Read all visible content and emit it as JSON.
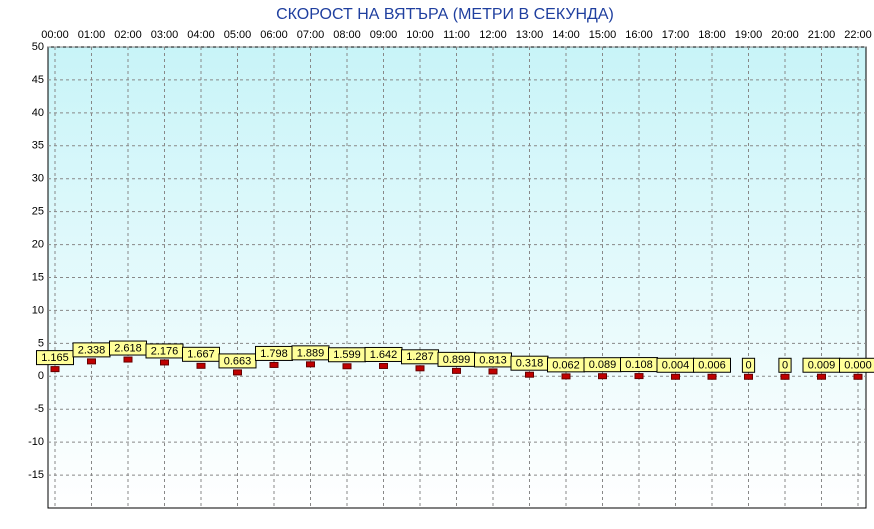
{
  "chart_data": {
    "type": "point",
    "title": "СКОРОСТ НА ВЯТЪРА (МЕТРИ В СЕКУНДА)",
    "categories": [
      "00:00",
      "01:00",
      "02:00",
      "03:00",
      "04:00",
      "05:00",
      "06:00",
      "07:00",
      "08:00",
      "09:00",
      "10:00",
      "11:00",
      "12:00",
      "13:00",
      "14:00",
      "15:00",
      "16:00",
      "17:00",
      "18:00",
      "19:00",
      "20:00",
      "21:00",
      "22:00"
    ],
    "values": [
      1.165,
      2.338,
      2.618,
      2.176,
      1.667,
      0.663,
      1.798,
      1.889,
      1.599,
      1.642,
      1.287,
      0.899,
      0.813,
      0.318,
      0.062,
      0.089,
      0.108,
      0.004,
      0.006,
      0,
      0,
      0.009,
      0
    ],
    "value_labels": [
      "1.165",
      "2.338",
      "2.618",
      "2.176",
      "1.667",
      "0.663",
      "1.798",
      "1.889",
      "1.599",
      "1.642",
      "1.287",
      "0.899",
      "0.813",
      "0.318",
      "0.062",
      "0.089",
      "0.108",
      "0.004",
      "0.006",
      "0",
      "0",
      "0.009",
      "0.000"
    ],
    "color": "#c00000",
    "ylim": [
      -20,
      50
    ],
    "yticks": [
      50,
      45,
      40,
      35,
      30,
      25,
      20,
      15,
      10,
      5,
      0,
      -5,
      -10,
      -15
    ],
    "grid": true
  }
}
